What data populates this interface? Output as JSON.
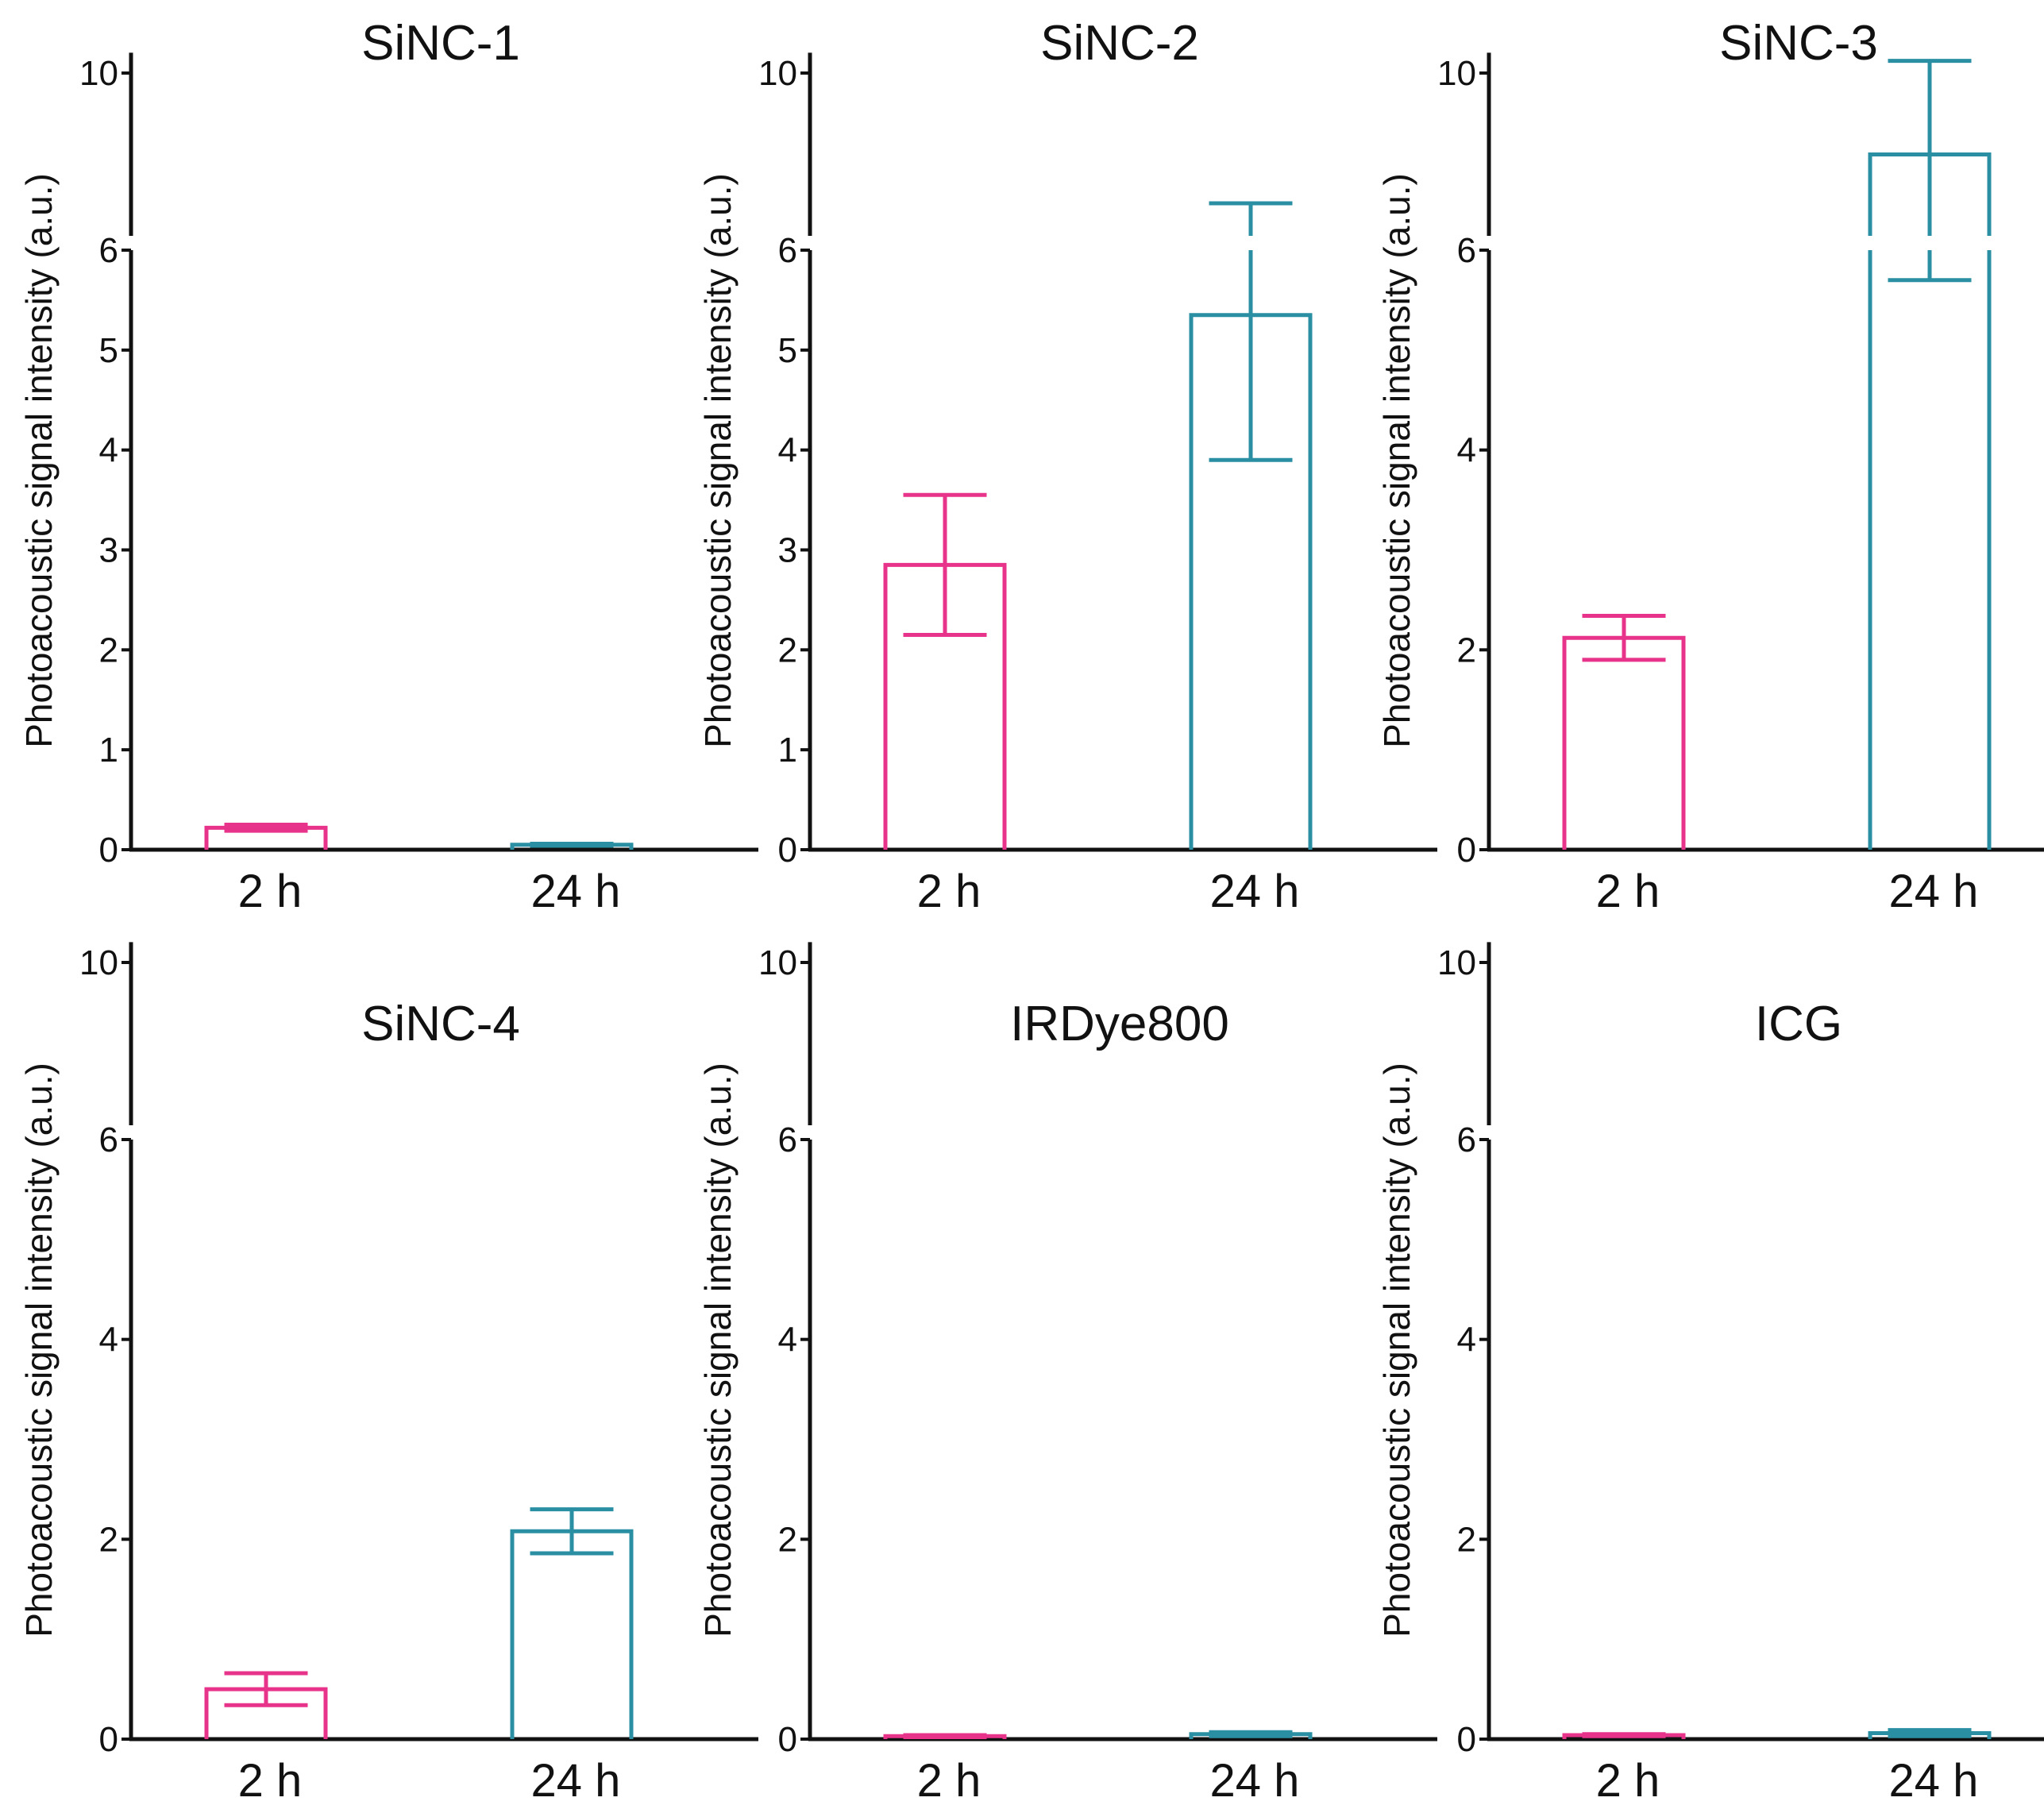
{
  "colors": {
    "h2": "#e8338a",
    "h24": "#2a8fa3",
    "axis": "#111111"
  },
  "chart_data": [
    {
      "type": "bar",
      "title": "SiNC-1",
      "categories": [
        "2 h",
        "24 h"
      ],
      "values": [
        0.22,
        0.05
      ],
      "errors": [
        0.03,
        0.01
      ],
      "ylabel": "Photoacoustic signal intensity (a.u.)",
      "yticks": [
        0,
        1,
        2,
        3,
        4,
        5,
        6,
        10
      ],
      "ylim": [
        0,
        10.5
      ],
      "axis_break": [
        6,
        10
      ]
    },
    {
      "type": "bar",
      "title": "SiNC-2",
      "categories": [
        "2 h",
        "24 h"
      ],
      "values": [
        2.85,
        5.35
      ],
      "errors": [
        0.7,
        1.45
      ],
      "ylabel": "Photoacoustic signal intensity (a.u.)",
      "yticks": [
        0,
        1,
        2,
        3,
        4,
        5,
        6,
        10
      ],
      "ylim": [
        0,
        10.5
      ],
      "axis_break": [
        6,
        10
      ]
    },
    {
      "type": "bar",
      "title": "SiNC-3",
      "categories": [
        "2 h",
        "24 h"
      ],
      "values": [
        2.12,
        8.0
      ],
      "errors": [
        0.22,
        2.3
      ],
      "ylabel": "Photoacoustic signal intensity (a.u.)",
      "yticks": [
        0,
        2,
        4,
        6,
        10
      ],
      "ylim": [
        0,
        10.5
      ],
      "axis_break": [
        6,
        10
      ]
    },
    {
      "type": "bar",
      "title": "SiNC-4",
      "categories": [
        "2 h",
        "24 h"
      ],
      "values": [
        0.5,
        2.08
      ],
      "errors": [
        0.16,
        0.22
      ],
      "ylabel": "Photoacoustic signal intensity (a.u.)",
      "yticks": [
        0,
        2,
        4,
        6,
        10
      ],
      "ylim": [
        0,
        10.5
      ],
      "axis_break": [
        6,
        10
      ]
    },
    {
      "type": "bar",
      "title": "IRDye800",
      "categories": [
        "2 h",
        "24 h"
      ],
      "values": [
        0.03,
        0.05
      ],
      "errors": [
        0.01,
        0.02
      ],
      "ylabel": "Photoacoustic signal intensity (a.u.)",
      "yticks": [
        0,
        2,
        4,
        6,
        10
      ],
      "ylim": [
        0,
        10.5
      ],
      "axis_break": [
        6,
        10
      ]
    },
    {
      "type": "bar",
      "title": "ICG",
      "categories": [
        "2 h",
        "24 h"
      ],
      "values": [
        0.04,
        0.06
      ],
      "errors": [
        0.01,
        0.03
      ],
      "ylabel": "Photoacoustic signal intensity (a.u.)",
      "yticks": [
        0,
        2,
        4,
        6,
        10
      ],
      "ylim": [
        0,
        10.5
      ],
      "axis_break": [
        6,
        10
      ]
    }
  ]
}
